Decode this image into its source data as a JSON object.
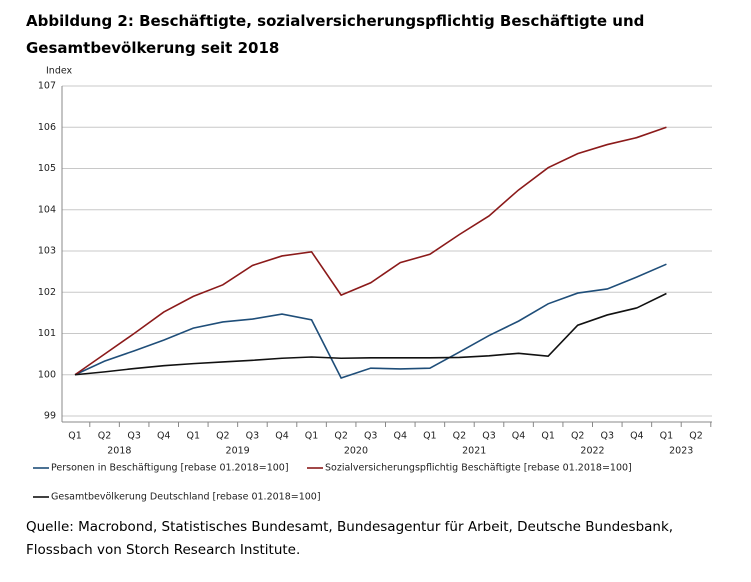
{
  "chart_data": {
    "type": "line",
    "title": "Abbildung 2: Beschäftigte, sozialversicherungspflichtig Beschäftigte und Gesamtbevölkerung seit 2018",
    "y_label": "Index",
    "source": "Quelle: Macrobond, Statistisches Bundesamt, Bundesagentur für Arbeit, Deutsche Bundesbank,  Flossbach von Storch Research Institute.",
    "categories": [
      "Q1",
      "Q2",
      "Q3",
      "Q4",
      "Q1",
      "Q2",
      "Q3",
      "Q4",
      "Q1",
      "Q2",
      "Q3",
      "Q4",
      "Q1",
      "Q2",
      "Q3",
      "Q4",
      "Q1",
      "Q2",
      "Q3",
      "Q4",
      "Q1",
      "Q2"
    ],
    "year_labels": [
      "2018",
      "2019",
      "2020",
      "2021",
      "2022",
      "2023"
    ],
    "ylim": [
      99,
      107
    ],
    "yticks": [
      99,
      100,
      101,
      102,
      103,
      104,
      105,
      106,
      107
    ],
    "grid": true,
    "series": [
      {
        "name": "Personen in Beschäftigung [rebase 01.2018=100]",
        "color": "#1f4e79",
        "values": [
          100.0,
          100.33,
          100.58,
          100.84,
          101.13,
          101.28,
          101.35,
          101.47,
          101.33,
          99.92,
          100.16,
          100.14,
          100.16,
          100.55,
          100.95,
          101.3,
          101.72,
          101.98,
          102.08,
          102.37,
          102.68,
          null
        ]
      },
      {
        "name": "Sozialversicherungspflichtig Beschäftigte [rebase 01.2018=100]",
        "color": "#8b1a1a",
        "values": [
          100.0,
          100.5,
          101.0,
          101.52,
          101.9,
          102.18,
          102.65,
          102.88,
          102.98,
          101.93,
          102.23,
          102.72,
          102.92,
          103.4,
          103.85,
          104.48,
          105.02,
          105.36,
          105.58,
          105.75,
          106.0,
          null
        ]
      },
      {
        "name": "Gesamtbevölkerung Deutschland [rebase 01.2018=100]",
        "color": "#111111",
        "values": [
          100.0,
          100.07,
          100.15,
          100.22,
          100.27,
          100.31,
          100.35,
          100.4,
          100.43,
          100.4,
          100.41,
          100.41,
          100.41,
          100.42,
          100.46,
          100.52,
          100.45,
          101.2,
          101.45,
          101.62,
          101.97,
          null
        ]
      }
    ]
  }
}
